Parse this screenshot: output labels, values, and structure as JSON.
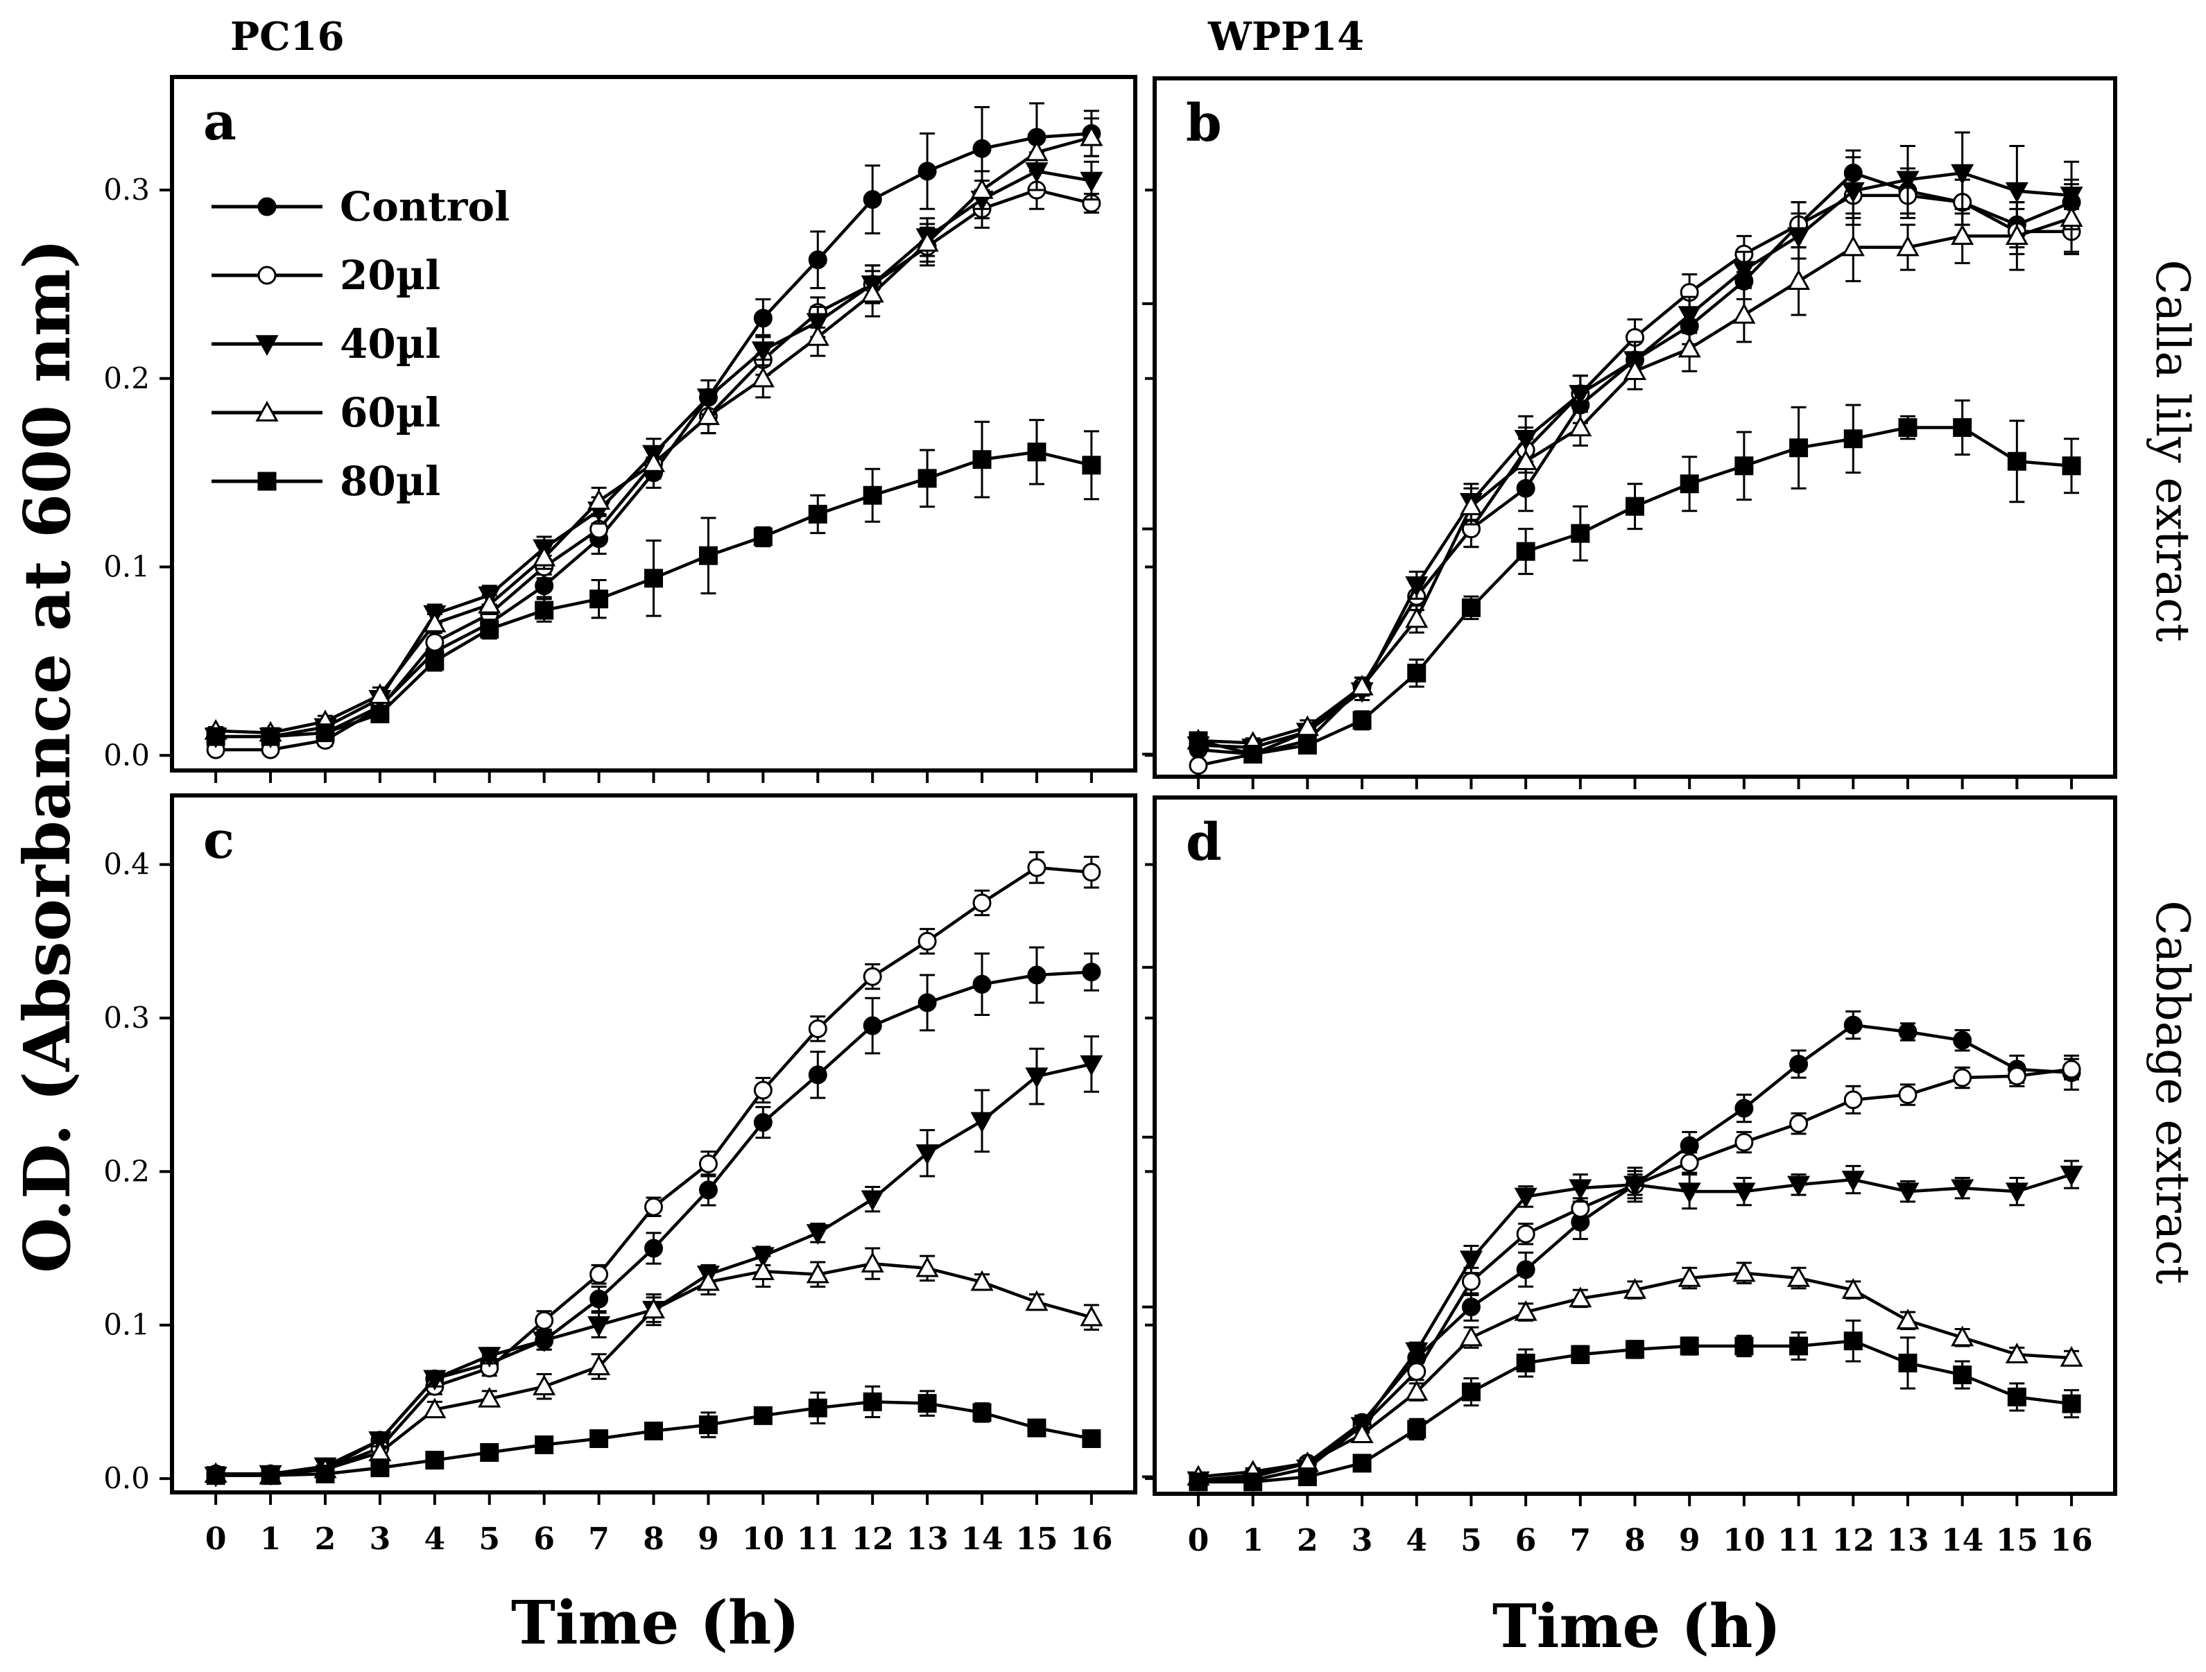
{
  "figure": {
    "column_titles": [
      "PC16",
      "WPP14"
    ],
    "row_titles": [
      "Calla lily extract",
      "Cabbage extract"
    ],
    "y_axis_label": "O.D. (Absorbance at 600 nm)",
    "x_axis_label": "Time (h)"
  },
  "legend": [
    {
      "name": "Control",
      "marker": "filled-circle"
    },
    {
      "name": "20µl",
      "marker": "open-circle"
    },
    {
      "name": "40µl",
      "marker": "filled-triangle-down"
    },
    {
      "name": "60µl",
      "marker": "open-triangle-up"
    },
    {
      "name": "80µl",
      "marker": "filled-square"
    }
  ],
  "chart_data": [
    {
      "type": "line",
      "panel": "a",
      "strain": "PC16",
      "treatment": "Calla lily extract",
      "xlabel": "Time (h)",
      "ylabel": "O.D. (Absorbance at 600 nm)",
      "x": [
        0,
        1,
        2,
        3,
        4,
        5,
        6,
        7,
        8,
        9,
        10,
        11,
        12,
        13,
        14,
        15,
        16
      ],
      "xlim": [
        -0.8,
        16.8
      ],
      "ylim": [
        -0.008,
        0.36
      ],
      "yticks": [
        0.0,
        0.1,
        0.2,
        0.3
      ],
      "series": [
        {
          "name": "Control",
          "values": [
            0.01,
            0.01,
            0.012,
            0.026,
            0.055,
            0.07,
            0.09,
            0.115,
            0.15,
            0.19,
            0.232,
            0.263,
            0.295,
            0.31,
            0.322,
            0.328,
            0.33
          ],
          "errors": [
            0.002,
            0.002,
            0.003,
            0.004,
            0.005,
            0.005,
            0.006,
            0.008,
            0.008,
            0.009,
            0.01,
            0.015,
            0.018,
            0.02,
            0.022,
            0.018,
            0.012
          ]
        },
        {
          "name": "20µl",
          "values": [
            0.003,
            0.003,
            0.008,
            0.025,
            0.06,
            0.075,
            0.1,
            0.12,
            0.155,
            0.18,
            0.21,
            0.235,
            0.25,
            0.27,
            0.29,
            0.3,
            0.293
          ],
          "errors": [
            0.002,
            0.002,
            0.003,
            0.004,
            0.005,
            0.005,
            0.006,
            0.007,
            0.008,
            0.009,
            0.008,
            0.008,
            0.01,
            0.01,
            0.01,
            0.01,
            0.005
          ]
        },
        {
          "name": "40µl",
          "values": [
            0.01,
            0.01,
            0.015,
            0.03,
            0.075,
            0.085,
            0.11,
            0.13,
            0.16,
            0.19,
            0.215,
            0.23,
            0.25,
            0.275,
            0.295,
            0.31,
            0.305
          ],
          "errors": [
            0.002,
            0.002,
            0.003,
            0.004,
            0.005,
            0.005,
            0.006,
            0.007,
            0.008,
            0.009,
            0.008,
            0.008,
            0.01,
            0.01,
            0.01,
            0.01,
            0.01
          ]
        },
        {
          "name": "60µl",
          "values": [
            0.013,
            0.012,
            0.018,
            0.032,
            0.07,
            0.08,
            0.105,
            0.135,
            0.155,
            0.18,
            0.2,
            0.222,
            0.245,
            0.272,
            0.3,
            0.32,
            0.328
          ],
          "errors": [
            0.002,
            0.002,
            0.003,
            0.004,
            0.005,
            0.005,
            0.006,
            0.007,
            0.008,
            0.009,
            0.01,
            0.01,
            0.012,
            0.01,
            0.01,
            0.01,
            0.01
          ]
        },
        {
          "name": "80µl",
          "values": [
            0.01,
            0.01,
            0.012,
            0.022,
            0.05,
            0.067,
            0.077,
            0.083,
            0.094,
            0.106,
            0.116,
            0.128,
            0.138,
            0.147,
            0.157,
            0.161,
            0.154
          ],
          "errors": [
            0.002,
            0.002,
            0.003,
            0.004,
            0.005,
            0.005,
            0.006,
            0.01,
            0.02,
            0.02,
            0.005,
            0.01,
            0.014,
            0.015,
            0.02,
            0.017,
            0.018
          ]
        }
      ]
    },
    {
      "type": "line",
      "panel": "b",
      "strain": "WPP14",
      "treatment": "Calla lily extract",
      "xlabel": "Time (h)",
      "ylabel": "O.D. (Absorbance at 600 nm)",
      "x": [
        0,
        1,
        2,
        3,
        4,
        5,
        6,
        7,
        8,
        9,
        10,
        11,
        12,
        13,
        14,
        15,
        16
      ],
      "xlim": [
        -0.8,
        16.8
      ],
      "ylim": [
        -0.01,
        0.3
      ],
      "yticks": [
        0.0,
        0.1,
        0.2
      ],
      "series": [
        {
          "name": "Control",
          "values": [
            0.002,
            0.0,
            0.006,
            0.03,
            0.07,
            0.1,
            0.118,
            0.155,
            0.175,
            0.19,
            0.21,
            0.235,
            0.258,
            0.25,
            0.245,
            0.235,
            0.245
          ],
          "errors": [
            0.002,
            0.002,
            0.003,
            0.004,
            0.006,
            0.008,
            0.01,
            0.008,
            0.008,
            0.008,
            0.008,
            0.01,
            0.01,
            0.01,
            0.01,
            0.01,
            0.01
          ]
        },
        {
          "name": "20µl",
          "values": [
            -0.005,
            0.0,
            0.01,
            0.03,
            0.07,
            0.1,
            0.135,
            0.16,
            0.185,
            0.205,
            0.222,
            0.235,
            0.248,
            0.248,
            0.245,
            0.232,
            0.232
          ],
          "errors": [
            0.002,
            0.002,
            0.003,
            0.004,
            0.006,
            0.008,
            0.01,
            0.008,
            0.008,
            0.008,
            0.008,
            0.01,
            0.01,
            0.01,
            0.01,
            0.01,
            0.01
          ]
        },
        {
          "name": "40µl",
          "values": [
            0.004,
            0.003,
            0.01,
            0.028,
            0.075,
            0.112,
            0.14,
            0.16,
            0.175,
            0.195,
            0.215,
            0.23,
            0.25,
            0.255,
            0.258,
            0.25,
            0.248
          ],
          "errors": [
            0.002,
            0.002,
            0.003,
            0.004,
            0.006,
            0.008,
            0.01,
            0.008,
            0.008,
            0.008,
            0.008,
            0.01,
            0.015,
            0.015,
            0.018,
            0.02,
            0.015
          ]
        },
        {
          "name": "60µl",
          "values": [
            0.006,
            0.005,
            0.012,
            0.03,
            0.06,
            0.11,
            0.13,
            0.145,
            0.17,
            0.18,
            0.195,
            0.21,
            0.225,
            0.225,
            0.23,
            0.23,
            0.238
          ],
          "errors": [
            0.002,
            0.002,
            0.003,
            0.004,
            0.006,
            0.008,
            0.01,
            0.008,
            0.008,
            0.01,
            0.012,
            0.015,
            0.015,
            0.01,
            0.012,
            0.015,
            0.015
          ]
        },
        {
          "name": "80µl",
          "values": [
            0.006,
            0.0,
            0.004,
            0.015,
            0.036,
            0.065,
            0.09,
            0.098,
            0.11,
            0.12,
            0.128,
            0.136,
            0.14,
            0.145,
            0.145,
            0.13,
            0.128
          ],
          "errors": [
            0.002,
            0.002,
            0.003,
            0.004,
            0.006,
            0.005,
            0.01,
            0.012,
            0.01,
            0.012,
            0.015,
            0.018,
            0.015,
            0.005,
            0.012,
            0.018,
            0.012
          ]
        }
      ]
    },
    {
      "type": "line",
      "panel": "c",
      "strain": "PC16",
      "treatment": "Cabbage extract",
      "xlabel": "Time (h)",
      "ylabel": "O.D. (Absorbance at 600 nm)",
      "x": [
        0,
        1,
        2,
        3,
        4,
        5,
        6,
        7,
        8,
        9,
        10,
        11,
        12,
        13,
        14,
        15,
        16
      ],
      "xlim": [
        -0.8,
        16.8
      ],
      "ylim": [
        -0.009,
        0.445
      ],
      "yticks": [
        0.0,
        0.1,
        0.2,
        0.3,
        0.4
      ],
      "series": [
        {
          "name": "Control",
          "values": [
            0.003,
            0.003,
            0.006,
            0.025,
            0.065,
            0.075,
            0.09,
            0.117,
            0.15,
            0.188,
            0.232,
            0.263,
            0.295,
            0.31,
            0.322,
            0.328,
            0.33
          ],
          "errors": [
            0.002,
            0.002,
            0.003,
            0.004,
            0.005,
            0.005,
            0.006,
            0.008,
            0.01,
            0.01,
            0.01,
            0.015,
            0.018,
            0.018,
            0.02,
            0.018,
            0.012
          ]
        },
        {
          "name": "20µl",
          "values": [
            0.003,
            0.003,
            0.006,
            0.02,
            0.06,
            0.072,
            0.103,
            0.133,
            0.177,
            0.205,
            0.253,
            0.293,
            0.327,
            0.35,
            0.375,
            0.398,
            0.395
          ],
          "errors": [
            0.002,
            0.002,
            0.003,
            0.004,
            0.005,
            0.005,
            0.006,
            0.006,
            0.006,
            0.008,
            0.008,
            0.008,
            0.008,
            0.008,
            0.008,
            0.01,
            0.01
          ]
        },
        {
          "name": "40µl",
          "values": [
            0.002,
            0.003,
            0.008,
            0.025,
            0.065,
            0.08,
            0.09,
            0.1,
            0.11,
            0.133,
            0.145,
            0.16,
            0.182,
            0.212,
            0.233,
            0.262,
            0.27
          ],
          "errors": [
            0.002,
            0.002,
            0.003,
            0.004,
            0.005,
            0.005,
            0.006,
            0.008,
            0.008,
            0.006,
            0.006,
            0.006,
            0.008,
            0.015,
            0.02,
            0.018,
            0.018
          ]
        },
        {
          "name": "60µl",
          "values": [
            0.003,
            0.002,
            0.006,
            0.017,
            0.045,
            0.052,
            0.06,
            0.073,
            0.11,
            0.128,
            0.135,
            0.133,
            0.14,
            0.137,
            0.128,
            0.115,
            0.105
          ],
          "errors": [
            0.002,
            0.002,
            0.003,
            0.004,
            0.005,
            0.005,
            0.008,
            0.008,
            0.01,
            0.008,
            0.01,
            0.008,
            0.01,
            0.008,
            0.005,
            0.005,
            0.008
          ]
        },
        {
          "name": "80µl",
          "values": [
            0.002,
            0.002,
            0.003,
            0.007,
            0.012,
            0.017,
            0.022,
            0.026,
            0.031,
            0.035,
            0.041,
            0.046,
            0.05,
            0.049,
            0.043,
            0.033,
            0.026
          ],
          "errors": [
            0.001,
            0.001,
            0.002,
            0.002,
            0.003,
            0.003,
            0.004,
            0.004,
            0.005,
            0.008,
            0.005,
            0.01,
            0.01,
            0.008,
            0.006,
            0.004,
            0.004
          ]
        }
      ]
    },
    {
      "type": "line",
      "panel": "d",
      "strain": "WPP14",
      "treatment": "Cabbage extract",
      "xlabel": "Time (h)",
      "ylabel": "O.D. (Absorbance at 600 nm)",
      "x": [
        0,
        1,
        2,
        3,
        4,
        5,
        6,
        7,
        8,
        9,
        10,
        11,
        12,
        13,
        14,
        15,
        16
      ],
      "xlim": [
        -0.8,
        16.8
      ],
      "ylim": [
        -0.01,
        0.4
      ],
      "yticks": [],
      "series": [
        {
          "name": "Control",
          "values": [
            -0.002,
            0.0,
            0.008,
            0.032,
            0.07,
            0.1,
            0.122,
            0.15,
            0.172,
            0.195,
            0.217,
            0.243,
            0.266,
            0.262,
            0.257,
            0.24,
            0.238
          ],
          "errors": [
            0.002,
            0.002,
            0.003,
            0.004,
            0.005,
            0.008,
            0.01,
            0.01,
            0.008,
            0.008,
            0.008,
            0.008,
            0.008,
            0.005,
            0.006,
            0.008,
            0.01
          ]
        },
        {
          "name": "20µl",
          "values": [
            -0.002,
            0.001,
            0.008,
            0.03,
            0.062,
            0.115,
            0.143,
            0.158,
            0.172,
            0.185,
            0.197,
            0.208,
            0.222,
            0.225,
            0.235,
            0.236,
            0.24
          ],
          "errors": [
            0.002,
            0.002,
            0.003,
            0.004,
            0.005,
            0.008,
            0.006,
            0.006,
            0.006,
            0.006,
            0.006,
            0.006,
            0.008,
            0.006,
            0.006,
            0.006,
            0.006
          ]
        },
        {
          "name": "40µl",
          "values": [
            -0.002,
            -0.002,
            0.005,
            0.03,
            0.074,
            0.128,
            0.165,
            0.17,
            0.172,
            0.168,
            0.168,
            0.172,
            0.175,
            0.168,
            0.17,
            0.168,
            0.178
          ],
          "errors": [
            0.002,
            0.002,
            0.003,
            0.004,
            0.005,
            0.008,
            0.006,
            0.008,
            0.01,
            0.01,
            0.008,
            0.006,
            0.008,
            0.006,
            0.006,
            0.008,
            0.008
          ]
        },
        {
          "name": "60µl",
          "values": [
            0.0,
            0.003,
            0.008,
            0.025,
            0.05,
            0.082,
            0.097,
            0.105,
            0.11,
            0.117,
            0.12,
            0.117,
            0.11,
            0.092,
            0.082,
            0.072,
            0.07
          ],
          "errors": [
            0.002,
            0.002,
            0.003,
            0.004,
            0.005,
            0.006,
            0.005,
            0.005,
            0.005,
            0.006,
            0.006,
            0.006,
            0.005,
            0.005,
            0.005,
            0.004,
            0.004
          ]
        },
        {
          "name": "80µl",
          "values": [
            -0.003,
            -0.003,
            0.0,
            0.008,
            0.028,
            0.05,
            0.067,
            0.072,
            0.075,
            0.077,
            0.077,
            0.077,
            0.08,
            0.067,
            0.06,
            0.047,
            0.043
          ],
          "errors": [
            0.002,
            0.002,
            0.003,
            0.004,
            0.006,
            0.008,
            0.008,
            0.005,
            0.005,
            0.005,
            0.006,
            0.008,
            0.012,
            0.015,
            0.008,
            0.008,
            0.008
          ]
        }
      ]
    }
  ]
}
